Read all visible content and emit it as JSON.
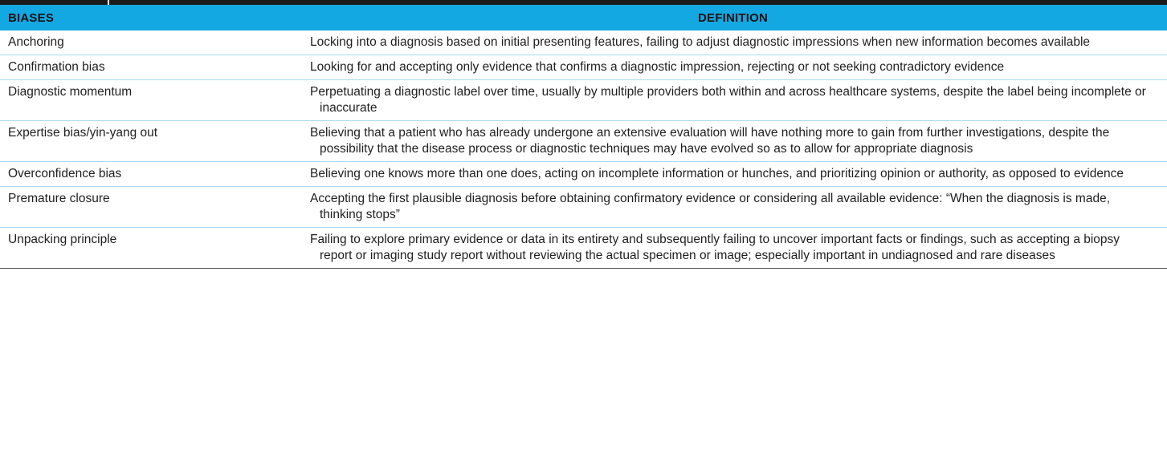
{
  "table": {
    "headers": {
      "bias": "BIASES",
      "definition": "DEFINITION"
    },
    "rows": [
      {
        "bias": "Anchoring",
        "definition": "Locking into a diagnosis based on initial presenting features, failing to adjust diagnostic impressions when new information becomes available"
      },
      {
        "bias": "Confirmation bias",
        "definition": "Looking for and accepting only evidence that confirms a diagnostic impression, rejecting or not seeking contradictory evidence"
      },
      {
        "bias": "Diagnostic momentum",
        "definition": "Perpetuating a diagnostic label over time, usually by multiple providers both within and across healthcare systems, despite the label being incomplete or inaccurate"
      },
      {
        "bias": "Expertise bias/yin-yang out",
        "definition": "Believing that a patient who has already undergone an extensive evaluation will have nothing more to gain from further investigations, despite the possibility that the disease process or diagnostic techniques may have evolved so as to allow for appropriate diagnosis"
      },
      {
        "bias": "Overconfidence bias",
        "definition": "Believing one knows more than one does, acting on incomplete information or hunches, and prioritizing opinion or authority, as opposed to evidence"
      },
      {
        "bias": "Premature closure",
        "definition": "Accepting the first plausible diagnosis before obtaining confirmatory evidence or considering all available evidence: “When the diagnosis is made, thinking stops”"
      },
      {
        "bias": "Unpacking principle",
        "definition": "Failing to explore primary evidence or data in its entirety and subsequently failing to uncover important facts or findings, such as accepting a biopsy report or imaging study report without reviewing the actual specimen or image; especially important in undiagnosed and rare diseases"
      }
    ]
  },
  "colors": {
    "header_background": "#14a8e2",
    "row_divider": "#a9d9ef",
    "top_rule": "#1a1a1a"
  }
}
